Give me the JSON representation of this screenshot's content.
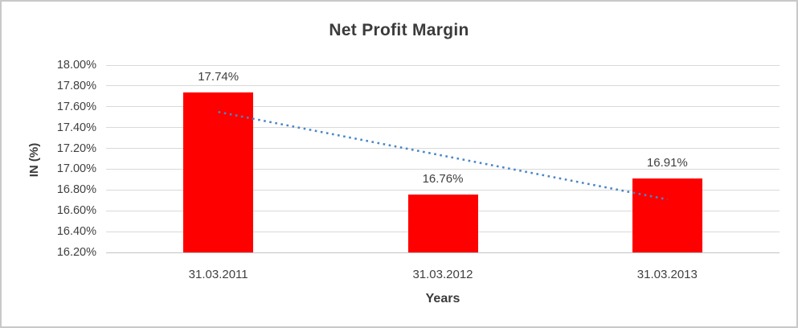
{
  "window": {
    "background": "#ffffff",
    "border_color": "#c9c9c9"
  },
  "chart_data": {
    "type": "bar",
    "title": "Net Profit Margin",
    "categories": [
      "31.03.2011",
      "31.03.2012",
      "31.03.2013"
    ],
    "values": [
      17.74,
      16.76,
      16.91
    ],
    "data_labels": [
      "17.74%",
      "16.76%",
      "16.91%"
    ],
    "xlabel": "Years",
    "ylabel": "IN (%)",
    "ylim": [
      16.2,
      18.0
    ],
    "ytick_step": 0.2,
    "ytick_labels": [
      "18.00%",
      "17.80%",
      "17.60%",
      "17.40%",
      "17.20%",
      "17.00%",
      "16.80%",
      "16.60%",
      "16.40%",
      "16.20%"
    ],
    "grid": true,
    "legend": "none",
    "bar_color": "#ff0000",
    "gridline_color": "#d9d9d9",
    "axis_line_color": "#c3c3c3",
    "tick_text_color": "#404040",
    "title_color": "#3b3b3b",
    "trendline": {
      "type": "linear",
      "style": "dotted",
      "color": "#4a86c8",
      "start_value": 17.55,
      "end_value": 16.71
    }
  }
}
